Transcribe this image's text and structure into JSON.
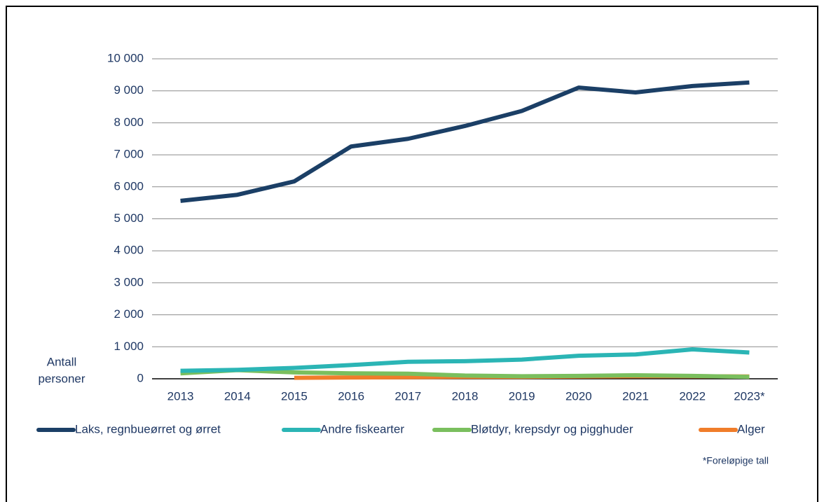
{
  "chart_data": {
    "type": "line",
    "y_label": [
      "Antall",
      "personer"
    ],
    "note": "*Foreløpige tall",
    "categories": [
      "2013",
      "2014",
      "2015",
      "2016",
      "2017",
      "2018",
      "2019",
      "2020",
      "2021",
      "2022",
      "2023*"
    ],
    "series": [
      {
        "name": "Laks, regnbueørret og ørret",
        "color": "#1b3f66",
        "values": [
          5560,
          5750,
          6170,
          7260,
          7500,
          7900,
          8370,
          9100,
          8950,
          9150,
          9260
        ]
      },
      {
        "name": "Andre fiskearter",
        "color": "#2bb5b5",
        "values": [
          250,
          280,
          340,
          430,
          530,
          550,
          600,
          720,
          760,
          920,
          820
        ]
      },
      {
        "name": "Bløtdyr, krepsdyr og pigghuder",
        "color": "#7abf5e",
        "values": [
          170,
          270,
          200,
          170,
          160,
          100,
          80,
          90,
          110,
          90,
          60
        ]
      },
      {
        "name": "Alger",
        "color": "#f07d2a",
        "values": [
          null,
          null,
          30,
          40,
          50,
          60,
          60,
          70,
          80,
          80,
          70
        ]
      }
    ],
    "ylim": [
      0,
      10000
    ],
    "yticks": [
      0,
      {
        "value": 1000,
        "label": "1 000"
      },
      {
        "value": 2000,
        "label": "2 000"
      },
      {
        "value": 3000,
        "label": "3 000"
      },
      {
        "value": 4000,
        "label": "4 000"
      },
      {
        "value": 5000,
        "label": "5 000"
      },
      {
        "value": 6000,
        "label": "6 000"
      },
      {
        "value": 7000,
        "label": "7 000"
      },
      {
        "value": 8000,
        "label": "8 000"
      },
      {
        "value": 9000,
        "label": "9 000"
      },
      {
        "value": 10000,
        "label": "10 000"
      }
    ],
    "grid": true,
    "legend": "bottom"
  }
}
